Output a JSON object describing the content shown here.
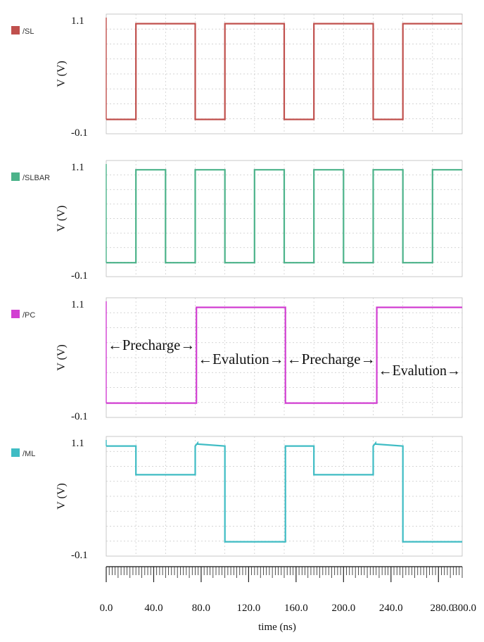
{
  "chart_data": {
    "type": "line",
    "xlabel": "time (ns)",
    "xlim": [
      0,
      300
    ],
    "x_ticks": [
      "0.0",
      "40.0",
      "80.0",
      "120.0",
      "160.0",
      "200.0",
      "240.0",
      "280.0",
      "300.0"
    ],
    "x_tick_values": [
      0,
      40,
      80,
      120,
      160,
      200,
      240,
      280,
      300
    ],
    "panels": [
      {
        "name": "/SL",
        "color": "#c0504d",
        "ylabel": "V (V)",
        "ylim": [
          -0.1,
          1.1
        ],
        "y_ticks": [
          "1.1",
          "-0.1"
        ],
        "x": [
          0,
          25,
          25,
          75,
          75,
          100,
          100,
          150,
          150,
          175,
          175,
          225,
          225,
          250,
          250,
          300
        ],
        "y": [
          0,
          0,
          1,
          1,
          0,
          0,
          1,
          1,
          0,
          0,
          1,
          1,
          0,
          0,
          1,
          1
        ]
      },
      {
        "name": "/SLBAR",
        "color": "#4cb38a",
        "ylabel": "V (V)",
        "ylim": [
          -0.1,
          1.1
        ],
        "y_ticks": [
          "1.1",
          "-0.1"
        ],
        "x": [
          0,
          25,
          25,
          50,
          50,
          75,
          75,
          100,
          100,
          125,
          125,
          150,
          150,
          175,
          175,
          200,
          200,
          225,
          225,
          250,
          250,
          275,
          275,
          300
        ],
        "y": [
          0,
          0,
          1,
          1,
          0,
          0,
          1,
          1,
          0,
          0,
          1,
          1,
          0,
          0,
          1,
          1,
          0,
          0,
          1,
          1,
          0,
          0,
          1,
          1
        ]
      },
      {
        "name": "/PC",
        "color": "#d23fd2",
        "ylabel": "V (V)",
        "ylim": [
          -0.1,
          1.1
        ],
        "y_ticks": [
          "1.1",
          "-0.1"
        ],
        "x": [
          0,
          76,
          76,
          151,
          151,
          228,
          228,
          300
        ],
        "y": [
          0,
          0,
          1,
          1,
          0,
          0,
          1,
          1
        ],
        "annotations": [
          {
            "text": "←Precharge→",
            "x_start": 0,
            "x_end": 76
          },
          {
            "text": "←Evalution→",
            "x_start": 76,
            "x_end": 151
          },
          {
            "text": "←Precharge→",
            "x_start": 151,
            "x_end": 228
          },
          {
            "text": "←Evalution→",
            "x_start": 228,
            "x_end": 300
          }
        ]
      },
      {
        "name": "/ML",
        "color": "#3fbcc4",
        "ylabel": "V (V)",
        "ylim": [
          -0.1,
          1.1
        ],
        "y_ticks": [
          "1.1",
          "-0.1"
        ],
        "x": [
          0,
          25,
          25,
          75,
          75,
          77,
          77,
          100,
          100,
          150,
          150,
          151,
          151,
          175,
          175,
          225,
          225,
          227,
          227,
          250,
          250,
          300
        ],
        "y": [
          1,
          1,
          0.7,
          0.7,
          1,
          1.03,
          1.02,
          1,
          0,
          0,
          0,
          0,
          1,
          1,
          0.7,
          0.7,
          1,
          1.03,
          1.02,
          1,
          0,
          0
        ]
      }
    ]
  }
}
